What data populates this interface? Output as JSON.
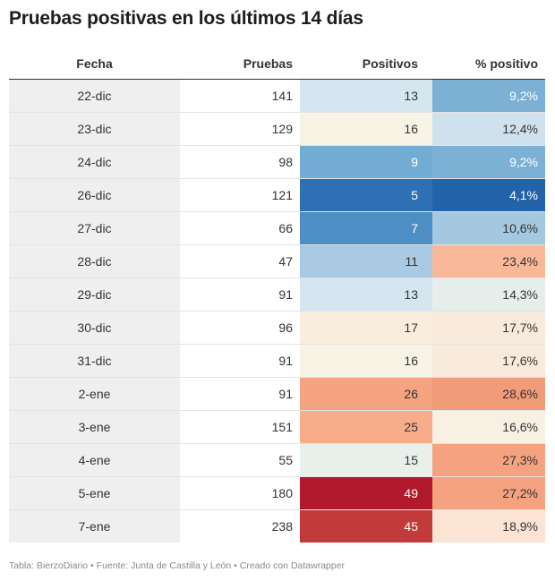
{
  "title": "Pruebas positivas en los últimos 14 días",
  "footer": "Tabla: BierzoDiario • Fuente: Junta de Castilla y León • Creado con Datawrapper",
  "chart_data": {
    "type": "table",
    "title": "Pruebas positivas en los últimos 14 días",
    "columns": [
      "Fecha",
      "Pruebas",
      "Positivos",
      "% positivo"
    ],
    "rows": [
      {
        "fecha": "22-dic",
        "pruebas": 141,
        "positivos": 13,
        "pct": "9,2%",
        "pos_bg": "#d6e6f0",
        "pos_fg": "#333333",
        "pct_bg": "#7cb1d5",
        "pct_fg": "#ffffff"
      },
      {
        "fecha": "23-dic",
        "pruebas": 129,
        "positivos": 16,
        "pct": "12,4%",
        "pos_bg": "#f7f4e6",
        "pos_fg": "#333333",
        "pct_bg": "#cfe1ec",
        "pct_fg": "#333333"
      },
      {
        "fecha": "24-dic",
        "pruebas": 98,
        "positivos": 9,
        "pct": "9,2%",
        "pos_bg": "#73acd3",
        "pos_fg": "#ffffff",
        "pct_bg": "#7cb1d5",
        "pct_fg": "#ffffff"
      },
      {
        "fecha": "26-dic",
        "pruebas": 121,
        "positivos": 5,
        "pct": "4,1%",
        "pos_bg": "#2f70b5",
        "pos_fg": "#ffffff",
        "pct_bg": "#2263a9",
        "pct_fg": "#ffffff"
      },
      {
        "fecha": "27-dic",
        "pruebas": 66,
        "positivos": 7,
        "pct": "10,6%",
        "pos_bg": "#4e8ec4",
        "pos_fg": "#ffffff",
        "pct_bg": "#a4c8e0",
        "pct_fg": "#333333"
      },
      {
        "fecha": "28-dic",
        "pruebas": 47,
        "positivos": 11,
        "pct": "23,4%",
        "pos_bg": "#a9cae2",
        "pos_fg": "#333333",
        "pct_bg": "#f9b999",
        "pct_fg": "#333333"
      },
      {
        "fecha": "29-dic",
        "pruebas": 91,
        "positivos": 13,
        "pct": "14,3%",
        "pos_bg": "#d6e6f0",
        "pos_fg": "#333333",
        "pct_bg": "#e6eeec",
        "pct_fg": "#333333"
      },
      {
        "fecha": "30-dic",
        "pruebas": 96,
        "positivos": 17,
        "pct": "17,7%",
        "pos_bg": "#f9eede",
        "pos_fg": "#333333",
        "pct_bg": "#f9ebdc",
        "pct_fg": "#333333"
      },
      {
        "fecha": "31-dic",
        "pruebas": 91,
        "positivos": 16,
        "pct": "17,6%",
        "pos_bg": "#f7f4e6",
        "pos_fg": "#333333",
        "pct_bg": "#f9ebdc",
        "pct_fg": "#333333"
      },
      {
        "fecha": "2-ene",
        "pruebas": 91,
        "positivos": 26,
        "pct": "28,6%",
        "pos_bg": "#f5a482",
        "pos_fg": "#333333",
        "pct_bg": "#f29b78",
        "pct_fg": "#333333"
      },
      {
        "fecha": "3-ene",
        "pruebas": 151,
        "positivos": 25,
        "pct": "16,6%",
        "pos_bg": "#f7ad8c",
        "pos_fg": "#333333",
        "pct_bg": "#f8f1e3",
        "pct_fg": "#333333"
      },
      {
        "fecha": "4-ene",
        "pruebas": 55,
        "positivos": 15,
        "pct": "27,3%",
        "pos_bg": "#e8f0ec",
        "pos_fg": "#333333",
        "pct_bg": "#f4a27f",
        "pct_fg": "#333333"
      },
      {
        "fecha": "5-ene",
        "pruebas": 180,
        "positivos": 49,
        "pct": "27,2%",
        "pos_bg": "#b2182b",
        "pos_fg": "#ffffff",
        "pct_bg": "#f4a27f",
        "pct_fg": "#333333"
      },
      {
        "fecha": "7-ene",
        "pruebas": 238,
        "positivos": 45,
        "pct": "18,9%",
        "pos_bg": "#c23a3a",
        "pos_fg": "#ffffff",
        "pct_bg": "#fbe4d4",
        "pct_fg": "#333333"
      }
    ]
  }
}
